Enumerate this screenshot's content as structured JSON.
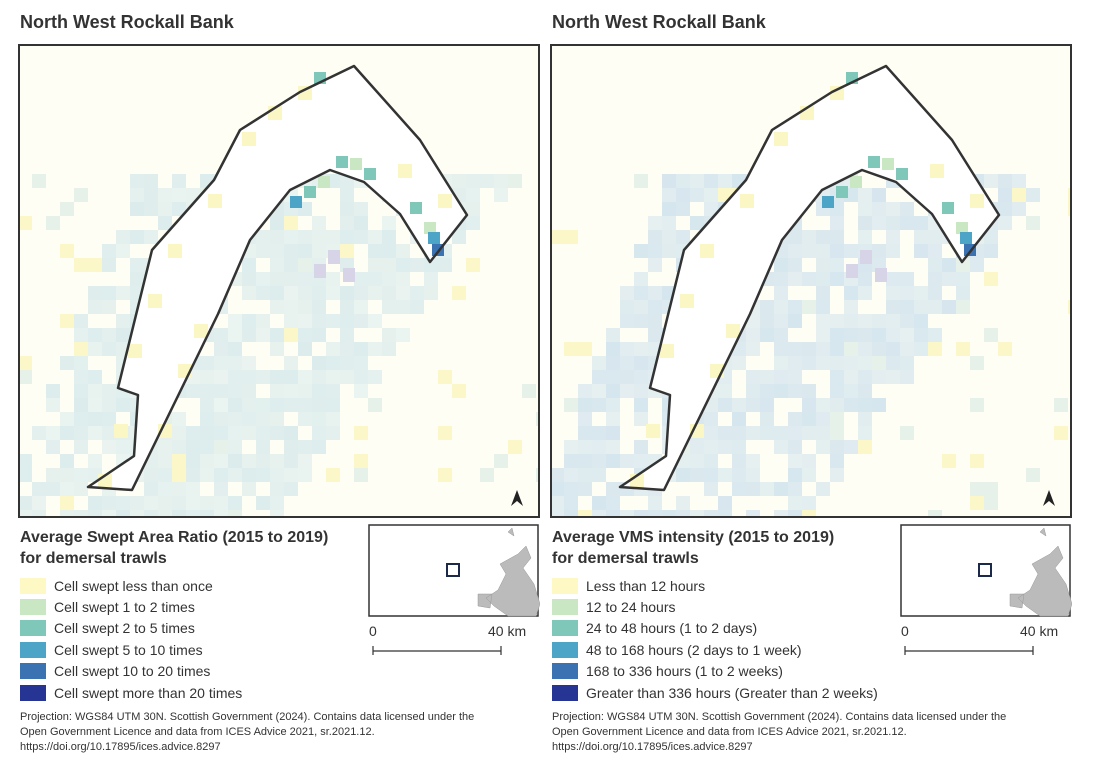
{
  "panels": [
    {
      "title": "North West Rockall Bank",
      "legend": {
        "title_lines": [
          "Average Swept Area Ratio (2015 to 2019)",
          "for demersal trawls"
        ],
        "items": [
          "Cell swept less than once",
          "Cell swept 1 to 2 times",
          "Cell swept 2 to 5 times",
          "Cell swept 5 to 10 times",
          "Cell swept 10 to 20 times",
          "Cell swept more than 20 times"
        ]
      },
      "scale": {
        "start": "0",
        "end": "40 km"
      },
      "footnote_lines": [
        "Projection: WGS84 UTM 30N. Scottish Government (2024). Contains data licensed under the",
        "Open Government Licence and data from ICES Advice 2021, sr.2021.12.",
        "https://doi.org/10.17895/ices.advice.8297"
      ]
    },
    {
      "title": "North West Rockall Bank",
      "legend": {
        "title_lines": [
          "Average VMS intensity (2015 to 2019)",
          "for demersal trawls"
        ],
        "items": [
          "Less than 12 hours",
          "12 to 24 hours",
          "24 to 48 hours (1 to 2 days)",
          "48 to 168 hours (2 days to 1 week)",
          "168 to 336 hours (1 to 2 weeks)",
          "Greater than 336 hours (Greater than 2 weeks)"
        ]
      },
      "scale": {
        "start": "0",
        "end": "40 km"
      },
      "footnote_lines": [
        "Projection: WGS84 UTM 30N. Scottish Government (2024). Contains data licensed under the",
        "Open Government Licence and data from ICES Advice 2021, sr.2021.12.",
        "https://doi.org/10.17895/ices.advice.8297"
      ]
    }
  ]
}
